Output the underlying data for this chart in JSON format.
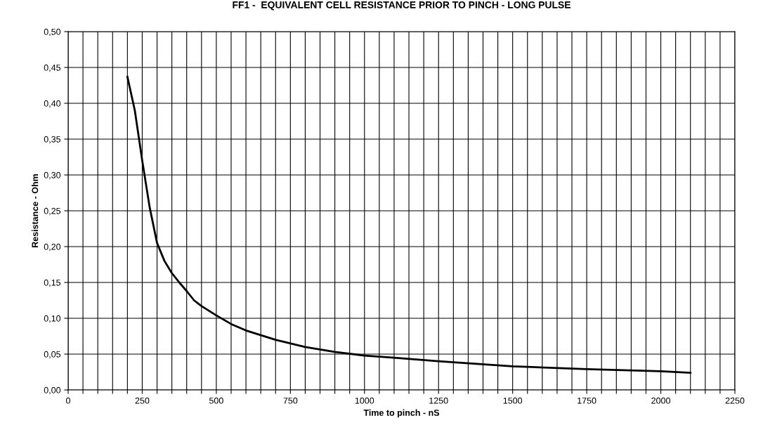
{
  "chart_data": {
    "type": "line",
    "title": "FF1 -  EQUIVALENT CELL RESISTANCE PRIOR TO PINCH - LONG PULSE",
    "xlabel": "Time to pinch - nS",
    "ylabel": "Resistance - Ohm",
    "x": [
      200,
      225,
      250,
      275,
      300,
      325,
      350,
      375,
      400,
      425,
      450,
      500,
      550,
      600,
      700,
      800,
      900,
      1000,
      1100,
      1250,
      1500,
      1750,
      2000,
      2100
    ],
    "series": [
      {
        "color": "#000000",
        "values": [
          0.437,
          0.39,
          0.32,
          0.255,
          0.205,
          0.18,
          0.163,
          0.15,
          0.138,
          0.125,
          0.117,
          0.104,
          0.092,
          0.083,
          0.07,
          0.06,
          0.053,
          0.048,
          0.045,
          0.04,
          0.033,
          0.029,
          0.026,
          0.024
        ]
      }
    ],
    "xlim": [
      0,
      2250
    ],
    "xticks": [
      0,
      {
        "value": 50,
        "label": null
      },
      {
        "value": 100,
        "label": null
      },
      {
        "value": 150,
        "label": null
      },
      {
        "value": 200,
        "label": null
      },
      250,
      {
        "value": 300,
        "label": null
      },
      {
        "value": 350,
        "label": null
      },
      {
        "value": 400,
        "label": null
      },
      {
        "value": 450,
        "label": null
      },
      500,
      {
        "value": 550,
        "label": null
      },
      {
        "value": 600,
        "label": null
      },
      {
        "value": 650,
        "label": null
      },
      {
        "value": 700,
        "label": null
      },
      750,
      {
        "value": 800,
        "label": null
      },
      {
        "value": 850,
        "label": null
      },
      {
        "value": 900,
        "label": null
      },
      {
        "value": 950,
        "label": null
      },
      1000,
      {
        "value": 1050,
        "label": null
      },
      {
        "value": 1100,
        "label": null
      },
      {
        "value": 1150,
        "label": null
      },
      {
        "value": 1200,
        "label": null
      },
      1250,
      {
        "value": 1300,
        "label": null
      },
      {
        "value": 1350,
        "label": null
      },
      {
        "value": 1400,
        "label": null
      },
      {
        "value": 1450,
        "label": null
      },
      1500,
      {
        "value": 1550,
        "label": null
      },
      {
        "value": 1600,
        "label": null
      },
      {
        "value": 1650,
        "label": null
      },
      {
        "value": 1700,
        "label": null
      },
      1750,
      {
        "value": 1800,
        "label": null
      },
      {
        "value": 1850,
        "label": null
      },
      {
        "value": 1900,
        "label": null
      },
      {
        "value": 1950,
        "label": null
      },
      2000,
      {
        "value": 2050,
        "label": null
      },
      {
        "value": 2100,
        "label": null
      },
      {
        "value": 2150,
        "label": null
      },
      {
        "value": 2200,
        "label": null
      },
      2250
    ],
    "ylim": [
      0,
      0.5
    ],
    "yticks": [
      {
        "value": 0,
        "label": "0,00"
      },
      {
        "value": 0.05,
        "label": "0,05"
      },
      {
        "value": 0.1,
        "label": "0,10"
      },
      {
        "value": 0.15,
        "label": "0,15"
      },
      {
        "value": 0.2,
        "label": "0,20"
      },
      {
        "value": 0.25,
        "label": "0,25"
      },
      {
        "value": 0.3,
        "label": "0,30"
      },
      {
        "value": 0.35,
        "label": "0,35"
      },
      {
        "value": 0.4,
        "label": "0,40"
      },
      {
        "value": 0.45,
        "label": "0,45"
      },
      {
        "value": 0.5,
        "label": "0,50"
      }
    ],
    "grid": true,
    "marker": "none",
    "line_style": "solid",
    "legend": false
  }
}
